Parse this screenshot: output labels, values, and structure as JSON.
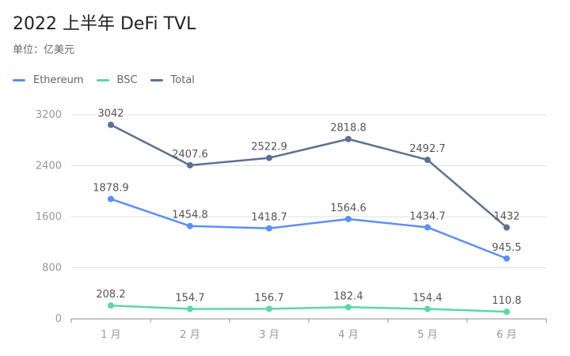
{
  "header": {
    "title": "2022 上半年 DeFi TVL",
    "unit_label": "单位：亿美元"
  },
  "chart_data": {
    "type": "line",
    "title": "2022 上半年 DeFi TVL",
    "subtitle": "单位：亿美元",
    "categories": [
      "1 月",
      "2 月",
      "3 月",
      "4 月",
      "5 月",
      "6 月"
    ],
    "series": [
      {
        "name": "Ethereum",
        "color": "#5B8FF9",
        "values": [
          1878.9,
          1454.8,
          1418.7,
          1564.6,
          1434.7,
          945.5
        ]
      },
      {
        "name": "BSC",
        "color": "#5AD8A6",
        "values": [
          208.2,
          154.7,
          156.7,
          182.4,
          154.4,
          110.8
        ]
      },
      {
        "name": "Total",
        "color": "#5D7092",
        "values": [
          3042,
          2407.6,
          2522.9,
          2818.8,
          2492.7,
          1432
        ]
      }
    ],
    "yticks": [
      0,
      800,
      1600,
      2400,
      3200
    ],
    "ylim": [
      0,
      3200
    ],
    "xlabel": "",
    "ylabel": "",
    "grid": true,
    "legend_position": "top-left"
  }
}
